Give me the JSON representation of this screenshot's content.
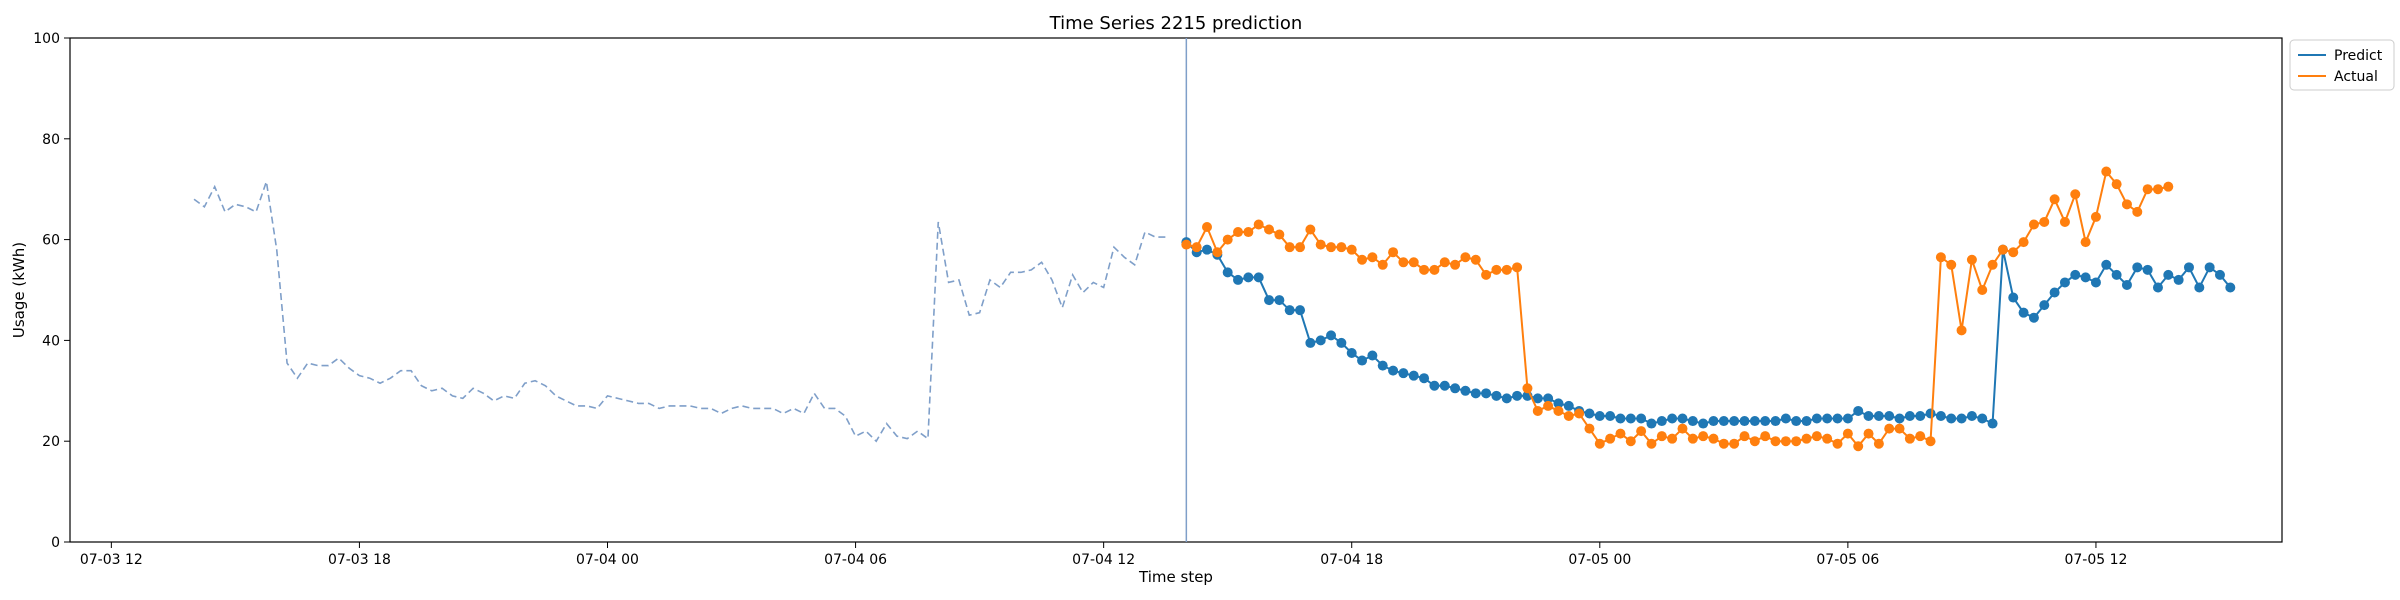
{
  "chart_data": {
    "type": "line",
    "title": "Time Series 2215 prediction",
    "xlabel": "Time step",
    "ylabel": "Usage (kWh)",
    "ylim": [
      0,
      100
    ],
    "yticks": [
      0,
      20,
      40,
      60,
      80,
      100
    ],
    "xlim": [
      "2023-07-03 11:00",
      "2023-07-05 16:30"
    ],
    "xticks": [
      {
        "t": "2023-07-03 12:00",
        "label": "07-03 12"
      },
      {
        "t": "2023-07-03 18:00",
        "label": "07-03 18"
      },
      {
        "t": "2023-07-04 00:00",
        "label": "07-04 00"
      },
      {
        "t": "2023-07-04 06:00",
        "label": "07-04 06"
      },
      {
        "t": "2023-07-04 12:00",
        "label": "07-04 12"
      },
      {
        "t": "2023-07-04 18:00",
        "label": "07-04 18"
      },
      {
        "t": "2023-07-05 00:00",
        "label": "07-05 00"
      },
      {
        "t": "2023-07-05 06:00",
        "label": "07-05 06"
      },
      {
        "t": "2023-07-05 12:00",
        "label": "07-05 12"
      }
    ],
    "interval_minutes": 15,
    "grid": false,
    "legend": "upper-right-outside",
    "forecast_start": "2023-07-04 14:00",
    "series": [
      {
        "role": "history",
        "color": "#7f9fc9",
        "style": "dashed",
        "start": "2023-07-03 14:00",
        "values": [
          68,
          66.5,
          70.5,
          65.5,
          67,
          66.5,
          65.5,
          71.5,
          58,
          35.5,
          32.5,
          35.5,
          35,
          35,
          36.5,
          34.5,
          33,
          32.5,
          31.5,
          32.5,
          34,
          34,
          31,
          30,
          30.5,
          29,
          28.5,
          30.5,
          29.5,
          28,
          29,
          28.5,
          31.5,
          32,
          31,
          29,
          28,
          27,
          27,
          26.5,
          29,
          28.5,
          28,
          27.5,
          27.5,
          26.5,
          27,
          27,
          27,
          26.5,
          26.5,
          25.5,
          26.5,
          27,
          26.5,
          26.5,
          26.5,
          25.5,
          26.5,
          25.5,
          29.5,
          26.5,
          26.5,
          25,
          21,
          22,
          20,
          23.5,
          21,
          20.5,
          22,
          20.5,
          63.5,
          51.5,
          52,
          45,
          45.5,
          52,
          50.5,
          53.5,
          53.5,
          54,
          55.5,
          52,
          46.5,
          53,
          49.5,
          51.5,
          50.5,
          58.5,
          56.5,
          55,
          61.5,
          60.5,
          60.5
        ]
      },
      {
        "name": "Predict",
        "color": "#1f77b4",
        "style": "solid-markers",
        "start": "2023-07-04 14:00",
        "values": [
          59.5,
          57.5,
          58,
          57,
          53.5,
          52,
          52.5,
          52.5,
          48,
          48,
          46,
          46,
          39.5,
          40,
          41,
          39.5,
          37.5,
          36,
          37,
          35,
          34,
          33.5,
          33,
          32.5,
          31,
          31,
          30.5,
          30,
          29.5,
          29.5,
          29,
          28.5,
          29,
          29,
          28.5,
          28.5,
          27.5,
          27,
          26,
          25.5,
          25,
          25,
          24.5,
          24.5,
          24.5,
          23.5,
          24,
          24.5,
          24.5,
          24,
          23.5,
          24,
          24,
          24,
          24,
          24,
          24,
          24,
          24.5,
          24,
          24,
          24.5,
          24.5,
          24.5,
          24.5,
          26,
          25,
          25,
          25,
          24.5,
          25,
          25,
          25.5,
          25,
          24.5,
          24.5,
          25,
          24.5,
          23.5,
          58,
          48.5,
          45.5,
          44.5,
          47,
          49.5,
          51.5,
          53,
          52.5,
          51.5,
          55,
          53,
          51,
          54.5,
          54,
          50.5,
          53,
          52,
          54.5,
          50.5,
          54.5,
          53,
          50.5
        ]
      },
      {
        "name": "Actual",
        "color": "#ff7f0e",
        "style": "solid-markers",
        "start": "2023-07-04 14:00",
        "values": [
          59,
          58.5,
          62.5,
          57.5,
          60,
          61.5,
          61.5,
          63,
          62,
          61,
          58.5,
          58.5,
          62,
          59,
          58.5,
          58.5,
          58,
          56,
          56.5,
          55,
          57.5,
          55.5,
          55.5,
          54,
          54,
          55.5,
          55,
          56.5,
          56,
          53,
          54,
          54,
          54.5,
          30.5,
          26,
          27,
          26,
          25,
          25.5,
          22.5,
          19.5,
          20.5,
          21.5,
          20,
          22,
          19.5,
          21,
          20.5,
          22.5,
          20.5,
          21,
          20.5,
          19.5,
          19.5,
          21,
          20,
          21,
          20,
          20,
          20,
          20.5,
          21,
          20.5,
          19.5,
          21.5,
          19,
          21.5,
          19.5,
          22.5,
          22.5,
          20.5,
          21,
          20,
          56.5,
          55,
          42,
          56,
          50,
          55,
          58,
          57.5,
          59.5,
          63,
          63.5,
          68,
          63.5,
          69,
          59.5,
          64.5,
          73.5,
          71,
          67,
          65.5,
          70,
          70,
          70.5
        ]
      }
    ]
  }
}
